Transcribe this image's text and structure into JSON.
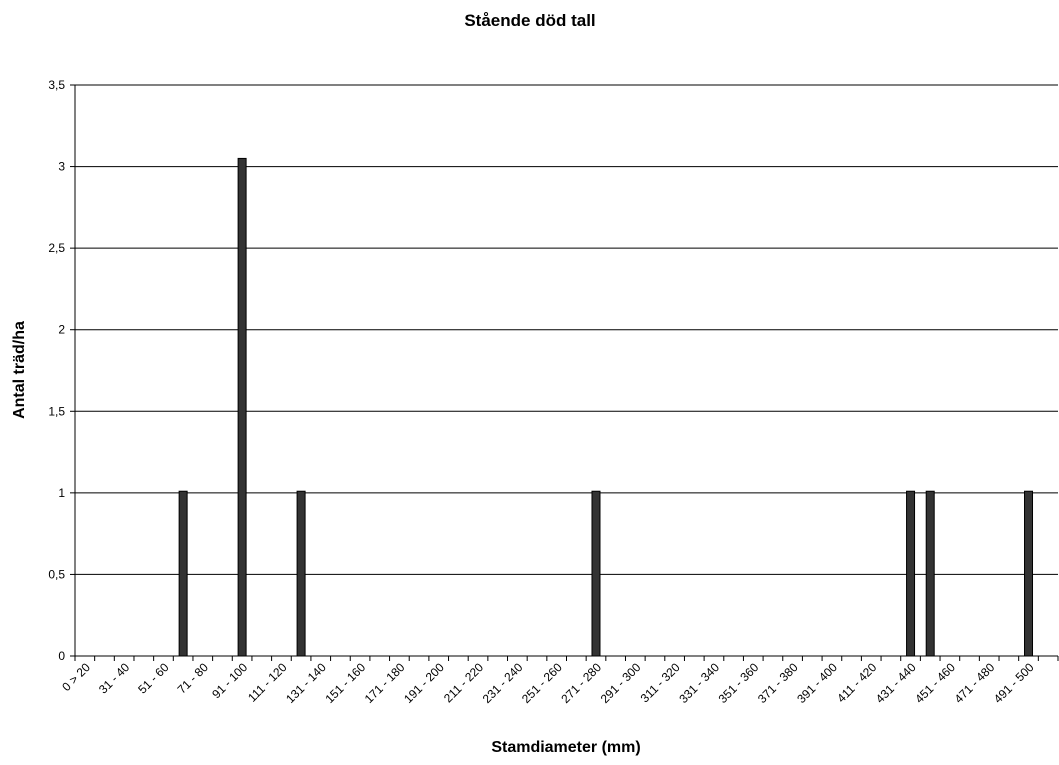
{
  "chart_data": {
    "type": "bar",
    "title": "Stående död tall",
    "x_label": "Stamdiameter (mm)",
    "y_label": "Antal träd/ha",
    "categories": [
      "0 > 20",
      null,
      "31 - 40",
      null,
      "51 - 60",
      null,
      "71 - 80",
      null,
      "91 - 100",
      null,
      "111 - 120",
      null,
      "131 - 140",
      null,
      "151 - 160",
      null,
      "171 - 180",
      null,
      "191 - 200",
      null,
      "211 - 220",
      null,
      "231 - 240",
      null,
      "251 - 260",
      null,
      "271 - 280",
      null,
      "291 - 300",
      null,
      "311 - 320",
      null,
      "331 - 340",
      null,
      "351 - 360",
      null,
      "371 - 380",
      null,
      "391 - 400",
      null,
      "411 - 420",
      null,
      "431 - 440",
      null,
      "451 - 460",
      null,
      "471 - 480",
      null,
      "491 - 500",
      null
    ],
    "values": [
      0,
      0,
      0,
      0,
      0,
      1.01,
      0,
      0,
      3.05,
      0,
      0,
      1.01,
      0,
      0,
      0,
      0,
      0,
      0,
      0,
      0,
      0,
      0,
      0,
      0,
      0,
      0,
      1.01,
      0,
      0,
      0,
      0,
      0,
      0,
      0,
      0,
      0,
      0,
      0,
      0,
      0,
      0,
      0,
      1.01,
      1.01,
      0,
      0,
      0,
      0,
      1.01,
      0
    ],
    "color": "#333333",
    "ylim": [
      0,
      3.5
    ],
    "yticks": [
      0,
      {
        "value": 0.5,
        "label": "0,5"
      },
      1,
      {
        "value": 1.5,
        "label": "1,5"
      },
      2,
      {
        "value": 2.5,
        "label": "2,5"
      },
      3,
      {
        "value": 3.5,
        "label": "3,5"
      }
    ],
    "grid": true
  }
}
